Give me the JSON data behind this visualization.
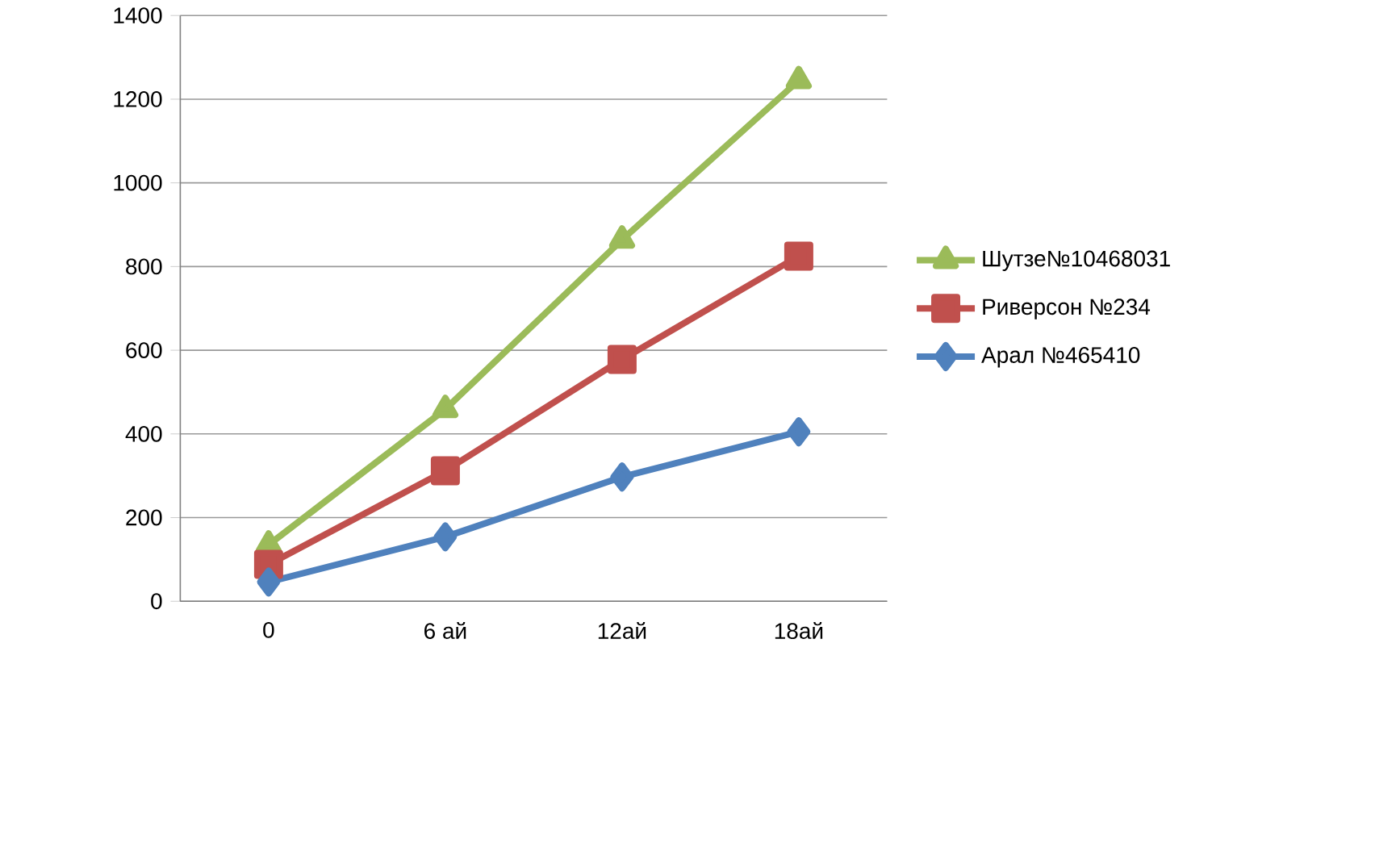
{
  "chart_data": {
    "type": "line",
    "categories": [
      "0",
      "6 ай",
      "12ай",
      "18ай"
    ],
    "series": [
      {
        "name": "Шутзе№10468031",
        "color": "#9bbb59",
        "marker": "triangle",
        "values": [
          135,
          459,
          864,
          1245
        ]
      },
      {
        "name": "Риверсон №234",
        "color": "#c0504d",
        "marker": "square",
        "values": [
          88,
          312,
          578,
          825
        ]
      },
      {
        "name": "Арал №465410",
        "color": "#4f81bd",
        "marker": "diamond",
        "values": [
          46,
          154,
          297,
          405
        ]
      }
    ],
    "ylim": [
      0,
      1400
    ],
    "yticks": [
      0,
      200,
      400,
      600,
      800,
      1000,
      1200,
      1400
    ],
    "grid": "y",
    "legend": "right",
    "line_style": "solid"
  }
}
